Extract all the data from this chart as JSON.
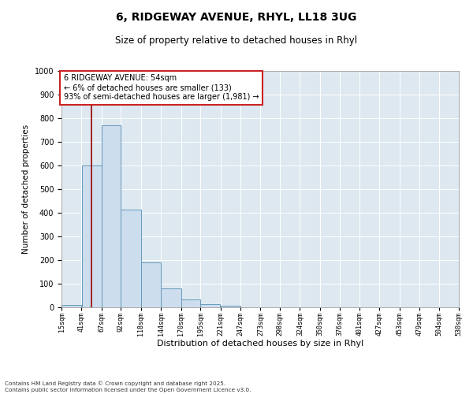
{
  "title_line1": "6, RIDGEWAY AVENUE, RHYL, LL18 3UG",
  "title_line2": "Size of property relative to detached houses in Rhyl",
  "xlabel": "Distribution of detached houses by size in Rhyl",
  "ylabel": "Number of detached properties",
  "bar_color": "#ccdded",
  "bar_edge_color": "#6699bb",
  "background_color": "#dde8f0",
  "bins": [
    15,
    41,
    67,
    92,
    118,
    144,
    170,
    195,
    221,
    247,
    273,
    298,
    324,
    350,
    376,
    401,
    427,
    453,
    479,
    504,
    530
  ],
  "bin_labels": [
    "15sqm",
    "41sqm",
    "67sqm",
    "92sqm",
    "118sqm",
    "144sqm",
    "170sqm",
    "195sqm",
    "221sqm",
    "247sqm",
    "273sqm",
    "298sqm",
    "324sqm",
    "350sqm",
    "376sqm",
    "401sqm",
    "427sqm",
    "453sqm",
    "479sqm",
    "504sqm",
    "530sqm"
  ],
  "counts": [
    10,
    600,
    770,
    415,
    190,
    80,
    35,
    14,
    8,
    0,
    0,
    0,
    0,
    0,
    0,
    0,
    0,
    0,
    0,
    0
  ],
  "property_size": 54,
  "vline_color": "#990000",
  "ylim": [
    0,
    1000
  ],
  "yticks": [
    0,
    100,
    200,
    300,
    400,
    500,
    600,
    700,
    800,
    900,
    1000
  ],
  "annotation_title": "6 RIDGEWAY AVENUE: 54sqm",
  "annotation_line1": "← 6% of detached houses are smaller (133)",
  "annotation_line2": "93% of semi-detached houses are larger (1,981) →",
  "annotation_box_color": "#cc2222",
  "footer_line1": "Contains HM Land Registry data © Crown copyright and database right 2025.",
  "footer_line2": "Contains public sector information licensed under the Open Government Licence v3.0."
}
